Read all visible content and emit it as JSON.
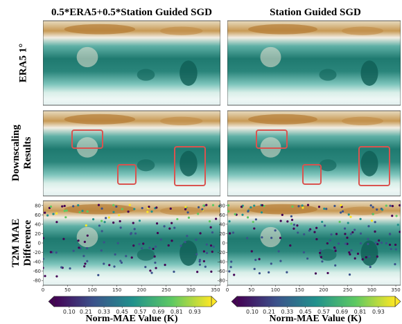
{
  "columns": [
    "0.5*ERA5+0.5*Station Guided SGD",
    "Station Guided SGD"
  ],
  "rows": [
    [
      "ERA5 1°"
    ],
    [
      "Downscaling",
      "Results"
    ],
    [
      "T2M MAE",
      "Difference"
    ]
  ],
  "axes": {
    "xlim": [
      0,
      360
    ],
    "ylim": [
      -90,
      90
    ],
    "xticks": [
      0,
      50,
      100,
      150,
      200,
      250,
      300,
      350
    ],
    "yticks": [
      80,
      60,
      40,
      20,
      0,
      -20,
      -40,
      -60,
      -80
    ]
  },
  "colorbar": {
    "label": "Norm-MAE Value (K)",
    "lim": [
      0,
      1.04
    ],
    "ticks": [
      {
        "value": 0.1,
        "label": "0.10"
      },
      {
        "value": 0.21,
        "label": "0.21"
      },
      {
        "value": 0.33,
        "label": "0.33"
      },
      {
        "value": 0.45,
        "label": "0.45"
      },
      {
        "value": 0.57,
        "label": "0.57"
      },
      {
        "value": 0.69,
        "label": "0.69"
      },
      {
        "value": 0.81,
        "label": "0.81"
      },
      {
        "value": 0.93,
        "label": "0.93"
      }
    ]
  }
}
